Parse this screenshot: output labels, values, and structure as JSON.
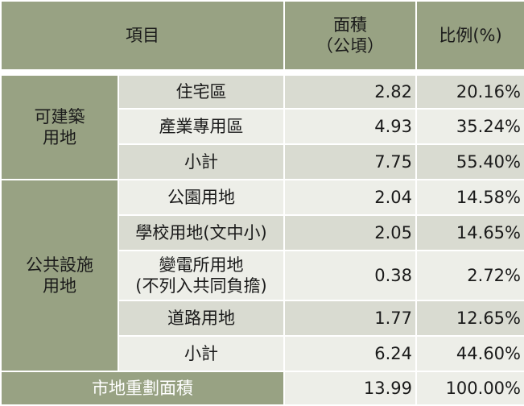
{
  "header": {
    "item": "項目",
    "area_line1": "面積",
    "area_line2": "（公頃）",
    "ratio": "比例(%)"
  },
  "groups": [
    {
      "category_line1": "可建築",
      "category_line2": "用地",
      "rows": [
        {
          "item": "住宅區",
          "area": "2.82",
          "ratio": "20.16%"
        },
        {
          "item": "產業專用區",
          "area": "4.93",
          "ratio": "35.24%"
        },
        {
          "item": "小計",
          "area": "7.75",
          "ratio": "55.40%"
        }
      ]
    },
    {
      "category_line1": "公共設施",
      "category_line2": "用地",
      "rows": [
        {
          "item": "公園用地",
          "area": "2.04",
          "ratio": "14.58%"
        },
        {
          "item": "學校用地(文中小)",
          "area": "2.05",
          "ratio": "14.65%"
        },
        {
          "item_line1": "變電所用地",
          "item_line2": "(不列入共同負擔)",
          "area": "0.38",
          "ratio": "2.72%"
        },
        {
          "item": "道路用地",
          "area": "1.77",
          "ratio": "12.65%"
        },
        {
          "item": "小計",
          "area": "6.24",
          "ratio": "44.60%"
        }
      ]
    }
  ],
  "total": {
    "label": "市地重劃面積",
    "area": "13.99",
    "ratio": "100.00%"
  }
}
